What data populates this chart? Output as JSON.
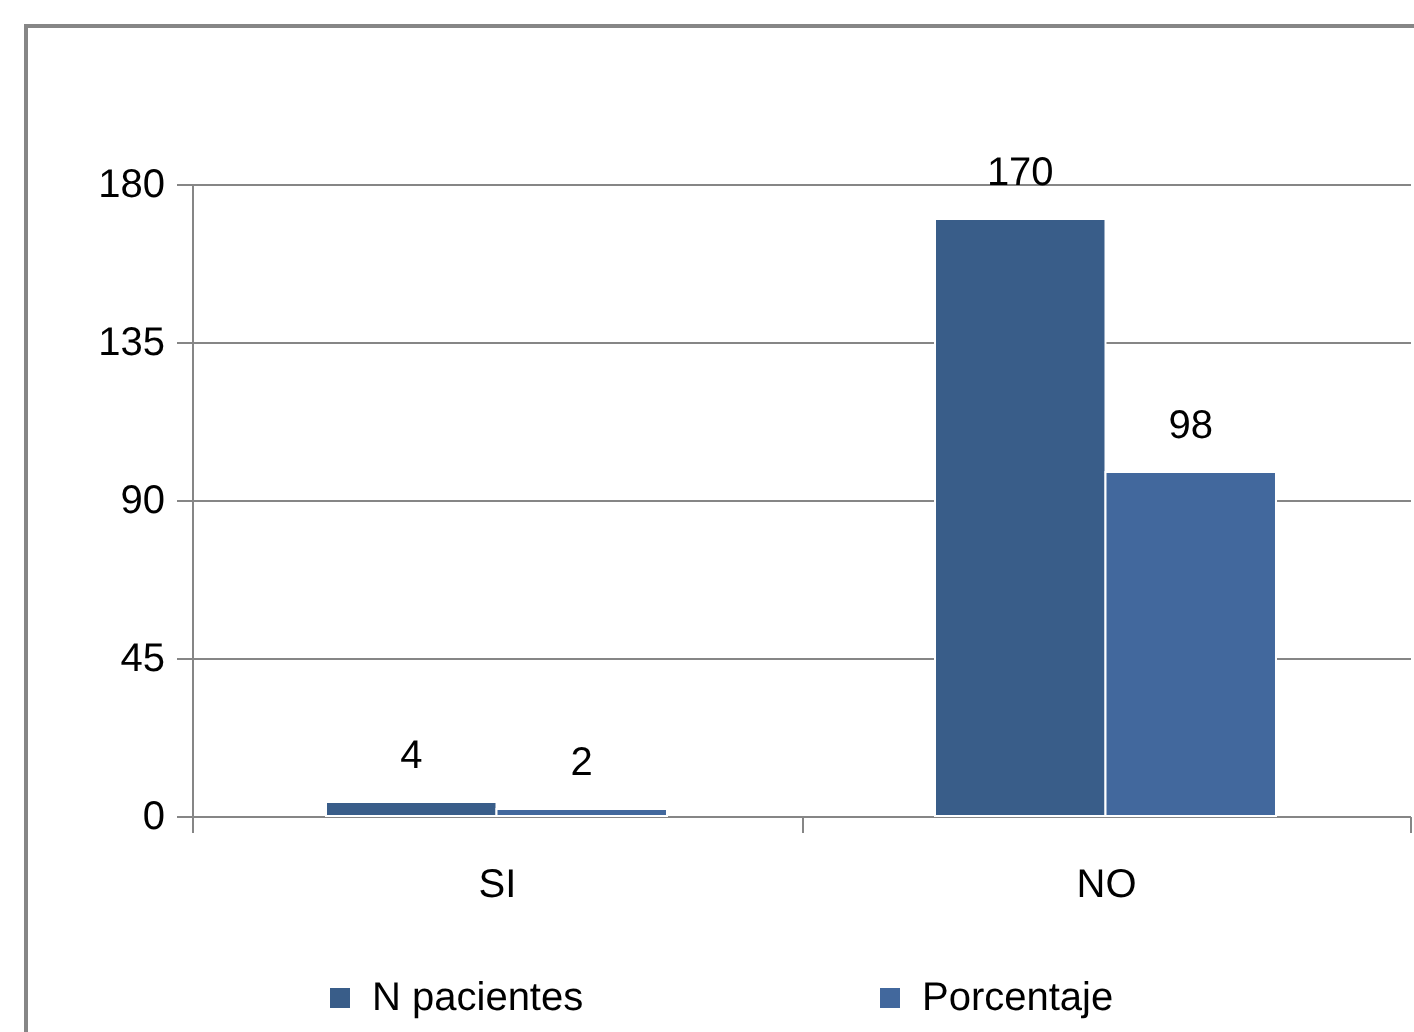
{
  "chart_data": {
    "type": "bar",
    "categories": [
      "SI",
      "NO"
    ],
    "series": [
      {
        "name": "N pacientes",
        "color": "#395d89",
        "values": [
          4,
          170
        ]
      },
      {
        "name": "Porcentaje",
        "color": "#42689d",
        "values": [
          2,
          98
        ]
      }
    ],
    "ylim": [
      0,
      180
    ],
    "yticks": [
      0,
      45,
      90,
      135,
      180
    ],
    "grid": "y",
    "legend": "bottom",
    "data_labels": true
  }
}
